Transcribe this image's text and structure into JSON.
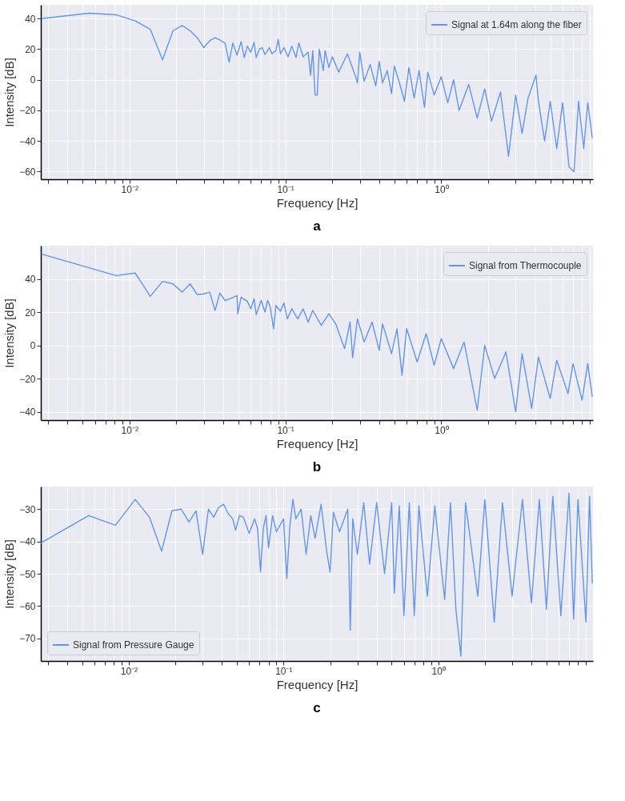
{
  "chart_data": [
    {
      "type": "line",
      "xlabel": "Frequency [Hz]",
      "ylabel": "Intensity [dB]",
      "annotations": [
        "a"
      ],
      "log": "x",
      "grid": true,
      "legend": "top right",
      "line_style": "solid",
      "marker": "none",
      "xlim": [
        0.0027,
        9.4
      ],
      "ylim": [
        -65,
        49
      ],
      "yticks": [
        -60,
        -40,
        -20,
        0,
        20,
        40
      ],
      "xticks": [
        {
          "value": 0.003,
          "label": null
        },
        {
          "value": 0.004,
          "label": null
        },
        {
          "value": 0.005,
          "label": null
        },
        {
          "value": 0.006,
          "label": null
        },
        {
          "value": 0.007,
          "label": null
        },
        {
          "value": 0.008,
          "label": null
        },
        {
          "value": 0.009,
          "label": null
        },
        {
          "value": 0.01,
          "label": "10⁻²"
        },
        {
          "value": 0.02,
          "label": null
        },
        {
          "value": 0.03,
          "label": null
        },
        {
          "value": 0.04,
          "label": null
        },
        {
          "value": 0.05,
          "label": null
        },
        {
          "value": 0.06,
          "label": null
        },
        {
          "value": 0.07,
          "label": null
        },
        {
          "value": 0.08,
          "label": null
        },
        {
          "value": 0.09,
          "label": null
        },
        {
          "value": 0.1,
          "label": "10⁻¹"
        },
        {
          "value": 0.2,
          "label": null
        },
        {
          "value": 0.3,
          "label": null
        },
        {
          "value": 0.4,
          "label": null
        },
        {
          "value": 0.5,
          "label": null
        },
        {
          "value": 0.6,
          "label": null
        },
        {
          "value": 0.7,
          "label": null
        },
        {
          "value": 0.8,
          "label": null
        },
        {
          "value": 0.9,
          "label": null
        },
        {
          "value": 1,
          "label": "10⁰"
        },
        {
          "value": 2,
          "label": null
        },
        {
          "value": 3,
          "label": null
        },
        {
          "value": 4,
          "label": null
        },
        {
          "value": 5,
          "label": null
        },
        {
          "value": 6,
          "label": null
        },
        {
          "value": 7,
          "label": null
        },
        {
          "value": 8,
          "label": null
        },
        {
          "value": 9,
          "label": null
        }
      ],
      "series": [
        {
          "name": "Signal at 1.64m along the fiber",
          "color": "#6495ed",
          "x": [
            0.00272,
            0.0055,
            0.0082,
            0.0109,
            0.0136,
            0.0163,
            0.019,
            0.0218,
            0.0245,
            0.0272,
            0.03,
            0.0327,
            0.0354,
            0.038,
            0.041,
            0.0436,
            0.046,
            0.049,
            0.052,
            0.0545,
            0.057,
            0.06,
            0.063,
            0.065,
            0.068,
            0.071,
            0.074,
            0.079,
            0.082,
            0.087,
            0.09,
            0.093,
            0.098,
            0.104,
            0.11,
            0.117,
            0.122,
            0.13,
            0.14,
            0.145,
            0.15,
            0.155,
            0.16,
            0.165,
            0.175,
            0.18,
            0.19,
            0.2,
            0.22,
            0.25,
            0.28,
            0.29,
            0.3,
            0.32,
            0.35,
            0.38,
            0.4,
            0.42,
            0.45,
            0.48,
            0.5,
            0.55,
            0.58,
            0.62,
            0.67,
            0.72,
            0.78,
            0.82,
            0.9,
            1.0,
            1.1,
            1.2,
            1.3,
            1.5,
            1.7,
            1.9,
            2.1,
            2.4,
            2.7,
            3.0,
            3.3,
            3.6,
            4.05,
            4.2,
            4.6,
            5.0,
            5.5,
            6.0,
            6.6,
            7.1,
            7.6,
            8.2,
            8.7,
            9.3
          ],
          "values": [
            40,
            43.5,
            42.5,
            38.5,
            33,
            13,
            32,
            35.5,
            32,
            27.5,
            21,
            25.5,
            27.5,
            26,
            24,
            11.5,
            24,
            16,
            25,
            14.5,
            22,
            18,
            24.5,
            14.5,
            20,
            21,
            16.5,
            21,
            17,
            19,
            26.5,
            17,
            21,
            15,
            22,
            14.5,
            24,
            15,
            18,
            3,
            19,
            -10,
            -10,
            20,
            6,
            19,
            8,
            15,
            5,
            17,
            3,
            -2,
            18,
            -1,
            10,
            -4,
            12,
            -2,
            6,
            -9,
            9,
            -5,
            -14,
            8,
            -12,
            6,
            -18,
            5,
            -10,
            2,
            -15,
            0,
            -20,
            -3,
            -25,
            -6,
            -27,
            -8,
            -50,
            -10,
            -35,
            -12,
            3,
            -14,
            -40,
            -14,
            -45,
            -15,
            -57,
            -60,
            -14,
            -45,
            -15,
            -38
          ]
        }
      ]
    },
    {
      "type": "line",
      "xlabel": "Frequency [Hz]",
      "ylabel": "Intensity [dB]",
      "annotations": [
        "b"
      ],
      "log": "x",
      "grid": true,
      "legend": "top right",
      "line_style": "solid",
      "marker": "none",
      "xlim": [
        0.0027,
        9.4
      ],
      "ylim": [
        -45,
        60
      ],
      "yticks": [
        -40,
        -20,
        0,
        20,
        40
      ],
      "xticks": [
        {
          "value": 0.003,
          "label": null
        },
        {
          "value": 0.004,
          "label": null
        },
        {
          "value": 0.005,
          "label": null
        },
        {
          "value": 0.006,
          "label": null
        },
        {
          "value": 0.007,
          "label": null
        },
        {
          "value": 0.008,
          "label": null
        },
        {
          "value": 0.009,
          "label": null
        },
        {
          "value": 0.01,
          "label": "10⁻²"
        },
        {
          "value": 0.02,
          "label": null
        },
        {
          "value": 0.03,
          "label": null
        },
        {
          "value": 0.04,
          "label": null
        },
        {
          "value": 0.05,
          "label": null
        },
        {
          "value": 0.06,
          "label": null
        },
        {
          "value": 0.07,
          "label": null
        },
        {
          "value": 0.08,
          "label": null
        },
        {
          "value": 0.09,
          "label": null
        },
        {
          "value": 0.1,
          "label": "10⁻¹"
        },
        {
          "value": 0.2,
          "label": null
        },
        {
          "value": 0.3,
          "label": null
        },
        {
          "value": 0.4,
          "label": null
        },
        {
          "value": 0.5,
          "label": null
        },
        {
          "value": 0.6,
          "label": null
        },
        {
          "value": 0.7,
          "label": null
        },
        {
          "value": 0.8,
          "label": null
        },
        {
          "value": 0.9,
          "label": null
        },
        {
          "value": 1,
          "label": "10⁰"
        },
        {
          "value": 2,
          "label": null
        },
        {
          "value": 3,
          "label": null
        },
        {
          "value": 4,
          "label": null
        },
        {
          "value": 5,
          "label": null
        },
        {
          "value": 6,
          "label": null
        },
        {
          "value": 7,
          "label": null
        },
        {
          "value": 8,
          "label": null
        },
        {
          "value": 9,
          "label": null
        }
      ],
      "series": [
        {
          "name": "Signal from Thermocouple",
          "color": "#6495ed",
          "x": [
            0.00272,
            0.0082,
            0.0109,
            0.0136,
            0.0163,
            0.019,
            0.0218,
            0.0245,
            0.0272,
            0.03,
            0.0327,
            0.0354,
            0.038,
            0.041,
            0.044,
            0.049,
            0.0495,
            0.052,
            0.057,
            0.06,
            0.063,
            0.065,
            0.07,
            0.074,
            0.077,
            0.08,
            0.084,
            0.087,
            0.093,
            0.098,
            0.103,
            0.11,
            0.12,
            0.13,
            0.14,
            0.15,
            0.17,
            0.19,
            0.21,
            0.24,
            0.26,
            0.27,
            0.29,
            0.32,
            0.36,
            0.4,
            0.42,
            0.48,
            0.52,
            0.56,
            0.6,
            0.7,
            0.8,
            0.9,
            1.0,
            1.2,
            1.4,
            1.7,
            1.9,
            2.2,
            2.6,
            3.0,
            3.3,
            3.8,
            4.2,
            5.0,
            5.5,
            6.5,
            7.0,
            8.0,
            8.7,
            9.3
          ],
          "values": [
            55,
            42,
            43.5,
            29.5,
            38.5,
            37,
            32,
            37,
            30.5,
            31,
            32,
            21,
            31.5,
            27,
            28,
            30,
            19,
            29,
            26.5,
            22,
            28,
            18.5,
            27,
            20,
            27,
            23,
            10,
            24,
            20.5,
            25.5,
            16,
            22,
            16,
            22,
            14,
            21,
            12,
            19,
            13,
            -2,
            14,
            -7.5,
            16,
            2,
            14,
            -3,
            13,
            -5,
            10,
            -18,
            10,
            -10,
            7,
            -12,
            4,
            -14,
            2,
            -39,
            0,
            -20,
            -4,
            -40,
            -5,
            -38,
            -7,
            -32,
            -9,
            -29,
            -11,
            -33,
            -11,
            -31
          ]
        }
      ]
    },
    {
      "type": "line",
      "xlabel": "Frequency [Hz]",
      "ylabel": "Intensity [dB]",
      "annotations": [
        "c"
      ],
      "log": "x",
      "grid": true,
      "legend": "bottom left",
      "line_style": "solid",
      "marker": "none",
      "xlim": [
        0.0027,
        10
      ],
      "ylim": [
        -77,
        -23
      ],
      "yticks": [
        -70,
        -60,
        -50,
        -40,
        -30
      ],
      "xticks": [
        {
          "value": 0.003,
          "label": null
        },
        {
          "value": 0.004,
          "label": null
        },
        {
          "value": 0.005,
          "label": null
        },
        {
          "value": 0.006,
          "label": null
        },
        {
          "value": 0.007,
          "label": null
        },
        {
          "value": 0.008,
          "label": null
        },
        {
          "value": 0.009,
          "label": null
        },
        {
          "value": 0.01,
          "label": "10⁻²"
        },
        {
          "value": 0.02,
          "label": null
        },
        {
          "value": 0.03,
          "label": null
        },
        {
          "value": 0.04,
          "label": null
        },
        {
          "value": 0.05,
          "label": null
        },
        {
          "value": 0.06,
          "label": null
        },
        {
          "value": 0.07,
          "label": null
        },
        {
          "value": 0.08,
          "label": null
        },
        {
          "value": 0.09,
          "label": null
        },
        {
          "value": 0.1,
          "label": "10⁻¹"
        },
        {
          "value": 0.2,
          "label": null
        },
        {
          "value": 0.3,
          "label": null
        },
        {
          "value": 0.4,
          "label": null
        },
        {
          "value": 0.5,
          "label": null
        },
        {
          "value": 0.6,
          "label": null
        },
        {
          "value": 0.7,
          "label": null
        },
        {
          "value": 0.8,
          "label": null
        },
        {
          "value": 0.9,
          "label": null
        },
        {
          "value": 1,
          "label": "10⁰"
        },
        {
          "value": 2,
          "label": null
        },
        {
          "value": 3,
          "label": null
        },
        {
          "value": 4,
          "label": null
        },
        {
          "value": 5,
          "label": null
        },
        {
          "value": 6,
          "label": null
        },
        {
          "value": 7,
          "label": null
        },
        {
          "value": 8,
          "label": null
        },
        {
          "value": 9,
          "label": null
        }
      ],
      "series": [
        {
          "name": "Signal from Pressure Gauge",
          "color": "#6495ed",
          "x": [
            0.0027,
            0.0055,
            0.0082,
            0.011,
            0.0136,
            0.0163,
            0.019,
            0.0218,
            0.0245,
            0.0272,
            0.03,
            0.0327,
            0.0354,
            0.038,
            0.041,
            0.044,
            0.047,
            0.049,
            0.052,
            0.055,
            0.06,
            0.065,
            0.068,
            0.071,
            0.074,
            0.077,
            0.08,
            0.085,
            0.09,
            0.1,
            0.105,
            0.11,
            0.115,
            0.12,
            0.13,
            0.14,
            0.15,
            0.16,
            0.175,
            0.19,
            0.2,
            0.21,
            0.23,
            0.26,
            0.27,
            0.28,
            0.3,
            0.33,
            0.36,
            0.4,
            0.45,
            0.5,
            0.52,
            0.56,
            0.6,
            0.65,
            0.7,
            0.75,
            0.85,
            0.95,
            1.1,
            1.2,
            1.3,
            1.4,
            1.5,
            1.8,
            2.0,
            2.3,
            2.6,
            3.0,
            3.5,
            4.0,
            4.5,
            5.0,
            5.5,
            6.2,
            7.0,
            7.5,
            8.0,
            9.0,
            9.5,
            9.9
          ],
          "values": [
            -40.5,
            -32,
            -35,
            -27,
            -32.5,
            -43,
            -30.5,
            -30,
            -34,
            -30.5,
            -44,
            -30,
            -32.5,
            -29.5,
            -28.5,
            -31.5,
            -33,
            -36.5,
            -32,
            -32.5,
            -37.5,
            -33,
            -36,
            -49.5,
            -36,
            -32,
            -42,
            -32,
            -37,
            -33,
            -51.5,
            -35,
            -27,
            -33,
            -30,
            -44,
            -32,
            -39,
            -28.5,
            -43,
            -49.5,
            -31,
            -37,
            -30,
            -67.5,
            -33,
            -44,
            -28,
            -47,
            -28,
            -50,
            -28,
            -56,
            -29,
            -63,
            -28,
            -63,
            -29,
            -57,
            -29,
            -58,
            -28,
            -61,
            -75.5,
            -28,
            -57,
            -27,
            -65,
            -28,
            -57,
            -27,
            -59,
            -27,
            -61,
            -26,
            -63,
            -25,
            -64,
            -27,
            -65,
            -26,
            -53
          ]
        }
      ]
    }
  ]
}
